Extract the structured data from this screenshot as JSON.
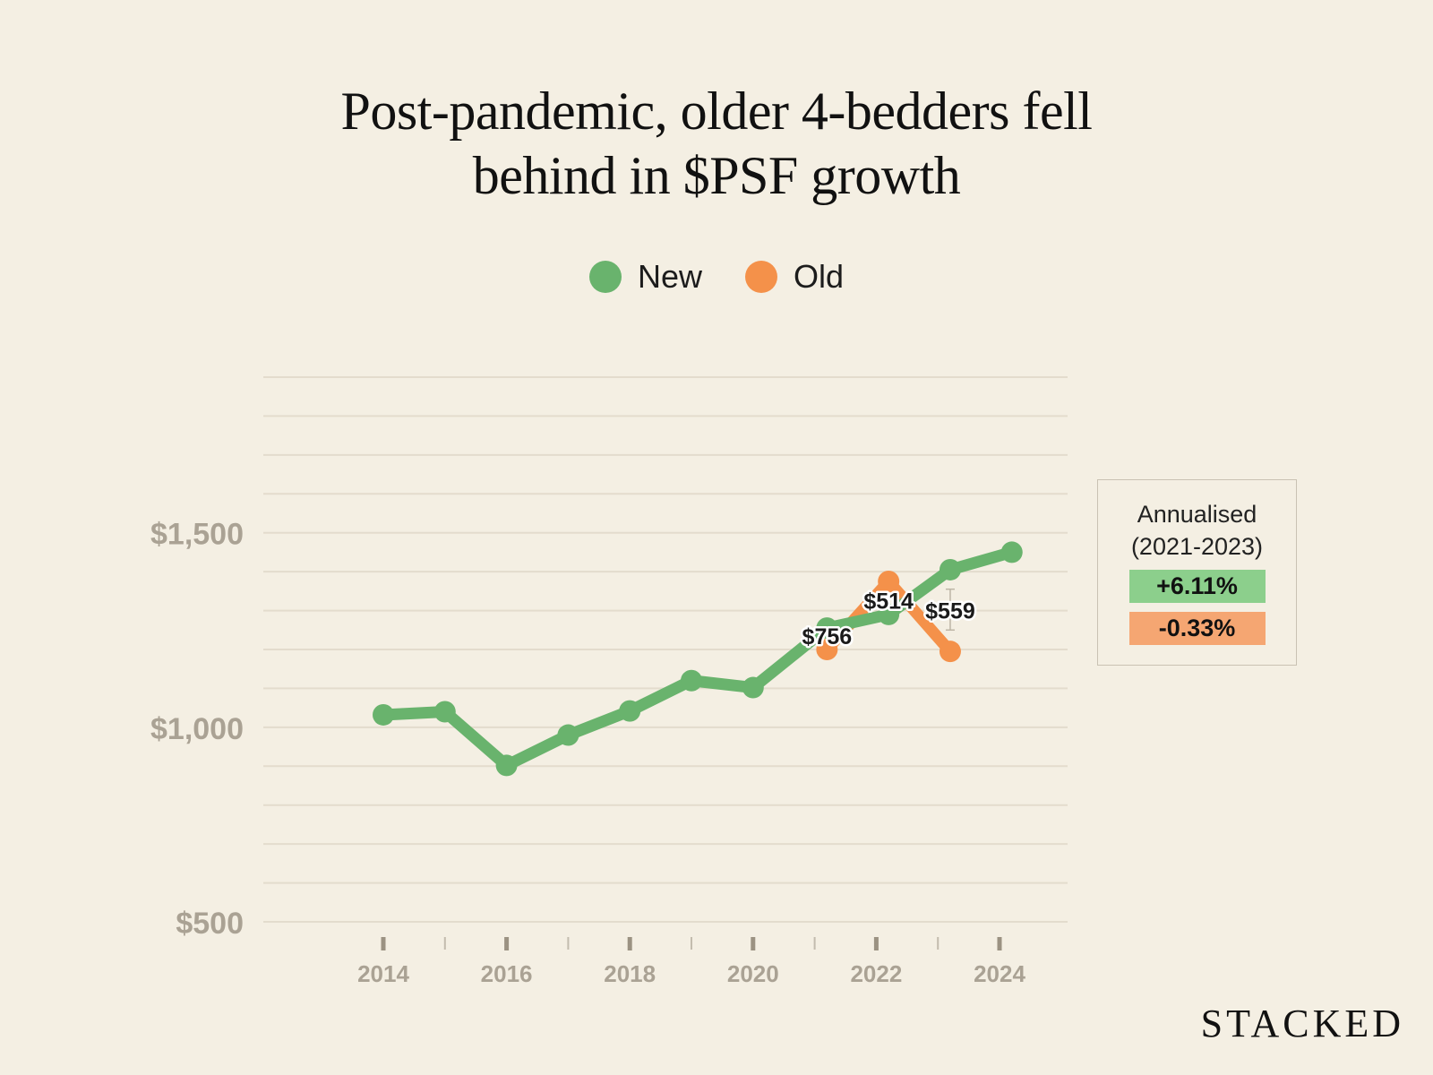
{
  "title_line1": "Post-pandemic, older 4-bedders fell",
  "title_line2": "behind in $PSF growth",
  "legend": [
    {
      "label": "New",
      "color": "#69b36d"
    },
    {
      "label": "Old",
      "color": "#f4914a"
    }
  ],
  "annualised": {
    "title_line1": "Annualised",
    "title_line2": "(2021-2023)",
    "new_value": "+6.11%",
    "old_value": "-0.33%"
  },
  "brand": "STACKED",
  "chart_data": {
    "type": "line",
    "title": "Post-pandemic, older 4-bedders fell behind in $PSF growth",
    "xlabel": "",
    "ylabel": "",
    "ylim": [
      500,
      1900
    ],
    "xlim": [
      2013,
      2025
    ],
    "y_ticks": [
      {
        "value": 500,
        "label": "$500"
      },
      {
        "value": 1000,
        "label": "$1,000"
      },
      {
        "value": 1500,
        "label": "$1,500"
      }
    ],
    "x_ticks": [
      2014,
      2015,
      2016,
      2017,
      2018,
      2019,
      2020,
      2021,
      2022,
      2023,
      2024
    ],
    "x_tick_labels": [
      {
        "value": 2014,
        "label": "2014"
      },
      {
        "value": 2016,
        "label": "2016"
      },
      {
        "value": 2018,
        "label": "2018"
      },
      {
        "value": 2020,
        "label": "2020"
      },
      {
        "value": 2022,
        "label": "2022"
      },
      {
        "value": 2024,
        "label": "2024"
      }
    ],
    "grid": true,
    "legend_position": "top-center",
    "series": [
      {
        "name": "New",
        "color": "#69b36d",
        "x": [
          2014,
          2015,
          2016,
          2017,
          2018,
          2019,
          2020,
          2021.2,
          2022.2,
          2023.2,
          2024.2
        ],
        "y": [
          1032,
          1040,
          902,
          980,
          1042,
          1120,
          1102,
          1255,
          1290,
          1405,
          1450
        ]
      },
      {
        "name": "Old",
        "color": "#f4914a",
        "x": [
          2021.2,
          2022.2,
          2023.2
        ],
        "y": [
          1200,
          1375,
          1195
        ]
      }
    ],
    "annotations": [
      {
        "x": 2021.2,
        "y": 1235,
        "label": "$756"
      },
      {
        "x": 2022.2,
        "y": 1325,
        "label": "$514"
      },
      {
        "x": 2023.2,
        "y": 1300,
        "label": "$559"
      }
    ],
    "error_bar": {
      "x": 2023.2,
      "low": 1250,
      "high": 1355
    }
  }
}
